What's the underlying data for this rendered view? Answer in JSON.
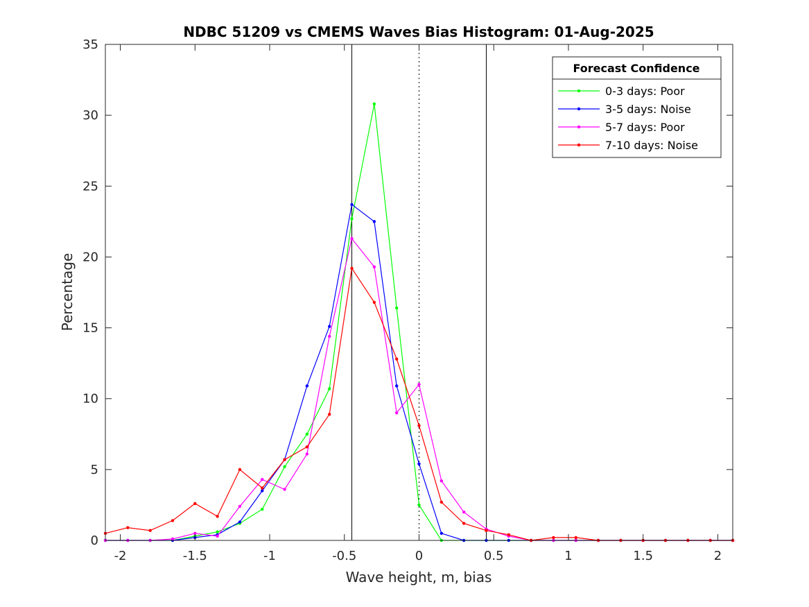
{
  "chart_data": {
    "type": "line",
    "title": "NDBC 51209 vs CMEMS Waves Bias Histogram: 01-Aug-2025",
    "xlabel": "Wave height, m, bias",
    "ylabel": "Percentage",
    "xlim": [
      -2.1,
      2.1
    ],
    "ylim": [
      0,
      35
    ],
    "xticks": [
      -2,
      -1.5,
      -1,
      -0.5,
      0,
      0.5,
      1,
      1.5,
      2
    ],
    "xtick_labels": [
      "-2",
      "-1.5",
      "-1",
      "-0.5",
      "0",
      "0.5",
      "1",
      "1.5",
      "2"
    ],
    "yticks": [
      0,
      5,
      10,
      15,
      20,
      25,
      30,
      35
    ],
    "ytick_labels": [
      "0",
      "5",
      "10",
      "15",
      "20",
      "25",
      "30",
      "35"
    ],
    "grid": false,
    "vlines": [
      {
        "x": -0.45,
        "style": "solid"
      },
      {
        "x": 0,
        "style": "dotted"
      },
      {
        "x": 0.45,
        "style": "solid"
      }
    ],
    "legend": {
      "title": "Forecast Confidence",
      "location": "top-right"
    },
    "x": [
      -2.1,
      -1.95,
      -1.8,
      -1.65,
      -1.5,
      -1.35,
      -1.2,
      -1.05,
      -0.9,
      -0.75,
      -0.6,
      -0.45,
      -0.3,
      -0.15,
      0,
      0.15,
      0.3,
      0.45,
      0.6,
      0.75,
      0.9,
      1.05,
      1.2,
      1.35,
      1.5,
      1.65,
      1.8,
      1.95,
      2.1
    ],
    "series": [
      {
        "name": "0-3 days: Poor",
        "color": "#00ff00",
        "values": [
          0,
          0,
          0,
          0,
          0.3,
          0.6,
          1.2,
          2.2,
          5.2,
          7.5,
          10.7,
          22.7,
          30.8,
          16.4,
          2.5,
          0,
          0,
          0,
          0,
          0,
          0,
          0,
          0,
          0,
          0,
          0,
          0,
          0,
          0
        ]
      },
      {
        "name": "3-5 days: Noise",
        "color": "#0000ff",
        "values": [
          0,
          0,
          0,
          0,
          0.2,
          0.4,
          1.3,
          3.5,
          5.7,
          10.9,
          15.1,
          23.7,
          22.5,
          10.9,
          5.4,
          0.5,
          0,
          0,
          0,
          0,
          0,
          0,
          0,
          0,
          0,
          0,
          0,
          0,
          0
        ]
      },
      {
        "name": "5-7 days: Poor",
        "color": "#ff00ff",
        "values": [
          0,
          0,
          0,
          0.1,
          0.5,
          0.3,
          2.4,
          4.3,
          3.6,
          6.1,
          14.4,
          21.3,
          19.3,
          9.0,
          11.0,
          4.2,
          2.0,
          0.8,
          0.3,
          0,
          0,
          0,
          0,
          0,
          0,
          0,
          0,
          0,
          0
        ]
      },
      {
        "name": "7-10 days: Noise",
        "color": "#ff0000",
        "values": [
          0.5,
          0.9,
          0.7,
          1.4,
          2.6,
          1.7,
          5.0,
          3.7,
          5.7,
          6.6,
          8.9,
          19.2,
          16.8,
          12.8,
          8.1,
          2.7,
          1.2,
          0.7,
          0.4,
          0,
          0.2,
          0.2,
          0,
          0,
          0,
          0,
          0,
          0,
          0
        ]
      }
    ]
  }
}
